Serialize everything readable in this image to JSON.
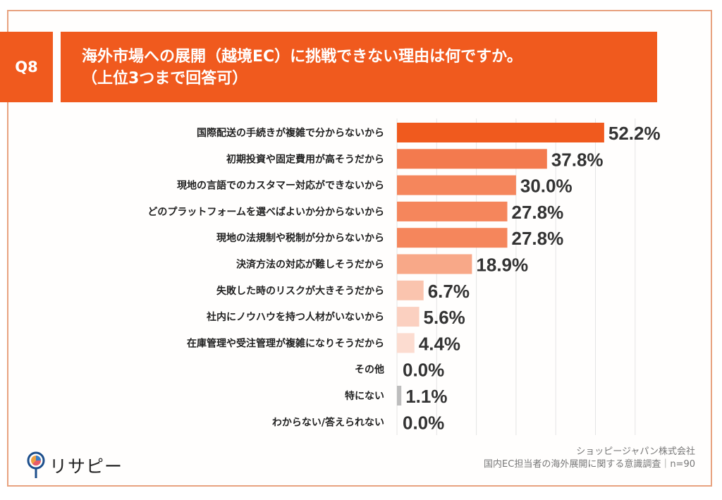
{
  "header": {
    "question_no": "Q8",
    "title_line1": "海外市場への展開（越境EC）に挑戦できない理由は何ですか。",
    "title_line2": "（上位3つまで回答可）"
  },
  "chart_data": {
    "type": "bar",
    "orientation": "horizontal",
    "xlim": [
      0,
      60
    ],
    "grid": true,
    "categories": [
      "国際配送の手続きが複雑で分からないから",
      "初期投資や固定費用が高そうだから",
      "現地の言語でのカスタマー対応ができないから",
      "どのプラットフォームを選べばよいか分からないから",
      "現地の法規制や税制が分からないから",
      "決済方法の対応が難しそうだから",
      "失敗した時のリスクが大きそうだから",
      "社内にノウハウを持つ人材がいないから",
      "在庫管理や受注管理が複雑になりそうだから",
      "その他",
      "特にない",
      "わからない/答えられない"
    ],
    "values": [
      52.2,
      37.8,
      30.0,
      27.8,
      27.8,
      18.9,
      6.7,
      5.6,
      4.4,
      0.0,
      1.1,
      0.0
    ],
    "value_labels": [
      "52.2%",
      "37.8%",
      "30.0%",
      "27.8%",
      "27.8%",
      "18.9%",
      "6.7%",
      "5.6%",
      "4.4%",
      "0.0%",
      "1.1%",
      "0.0%"
    ],
    "colors": [
      "#f05a1e",
      "#f37a4e",
      "#f5865c",
      "#f5865c",
      "#f5865c",
      "#f8a888",
      "#fac4ae",
      "#fbd0c0",
      "#fcdcd0",
      "#fcdcd0",
      "#bdbdbd",
      "#bdbdbd"
    ]
  },
  "footer": {
    "logo_text": "リサピー",
    "company": "ショッピージャパン株式会社",
    "survey": "国内EC担当者の海外展開に関する意識調査｜n=90"
  }
}
